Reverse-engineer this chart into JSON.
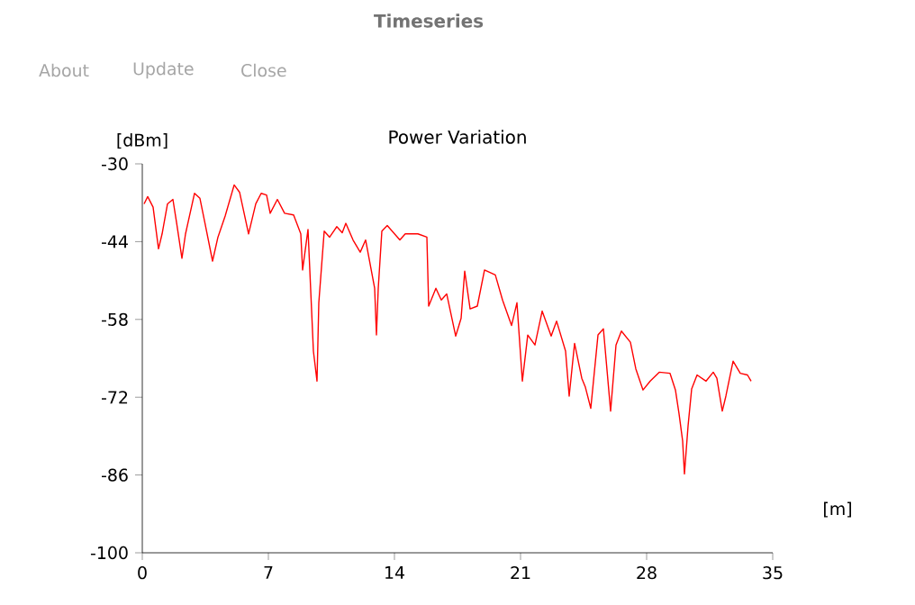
{
  "chart_data": {
    "type": "line",
    "title": "Power Variation",
    "xlabel": "[m]",
    "ylabel": "[dBm]",
    "annotations": [
      "Timeseries",
      "About",
      "Update",
      "Close"
    ],
    "xlim": [
      0,
      35
    ],
    "ylim": [
      -100,
      -30
    ],
    "xticks": [
      0,
      7,
      14,
      21,
      28,
      35
    ],
    "yticks": [
      -100,
      -86,
      -72,
      -58,
      -44,
      -30
    ],
    "x": [
      0.1,
      0.3,
      0.6,
      0.9,
      1.1,
      1.4,
      1.7,
      1.9,
      2.2,
      2.4,
      2.9,
      3.2,
      3.5,
      3.9,
      4.2,
      4.6,
      5.1,
      5.4,
      5.9,
      6.3,
      6.6,
      6.9,
      7.1,
      7.5,
      7.9,
      8.4,
      8.8,
      8.9,
      9.2,
      9.5,
      9.7,
      9.8,
      10.1,
      10.4,
      10.8,
      11.1,
      11.3,
      11.7,
      12.1,
      12.4,
      12.9,
      13.0,
      13.1,
      13.3,
      13.6,
      14.3,
      14.6,
      15.3,
      15.8,
      15.9,
      16.3,
      16.6,
      16.9,
      17.4,
      17.7,
      17.9,
      18.2,
      18.6,
      19.0,
      19.6,
      20.0,
      20.5,
      20.8,
      21.1,
      21.4,
      21.8,
      22.2,
      22.7,
      23.0,
      23.5,
      23.7,
      24.0,
      24.4,
      24.6,
      24.9,
      25.3,
      25.6,
      26.0,
      26.3,
      26.6,
      27.1,
      27.4,
      27.8,
      28.2,
      28.7,
      29.3,
      29.6,
      29.8,
      30.0,
      30.1,
      30.3,
      30.5,
      30.8,
      31.3,
      31.7,
      31.9,
      32.2,
      32.4,
      32.8,
      33.2,
      33.6,
      33.8
    ],
    "series": [
      {
        "color": "#ff0000",
        "values": [
          -37.2,
          -35.9,
          -37.8,
          -45.3,
          -42.6,
          -37.2,
          -36.4,
          -40.5,
          -47.0,
          -42.6,
          -35.3,
          -36.2,
          -41.0,
          -47.5,
          -43.2,
          -39.4,
          -33.8,
          -35.1,
          -42.6,
          -37.2,
          -35.3,
          -35.6,
          -38.9,
          -36.4,
          -38.9,
          -39.2,
          -42.6,
          -49.1,
          -41.8,
          -63.7,
          -69.1,
          -55.0,
          -42.1,
          -43.2,
          -41.3,
          -42.4,
          -40.7,
          -43.7,
          -45.9,
          -43.7,
          -52.4,
          -60.8,
          -52.4,
          -42.1,
          -41.1,
          -43.7,
          -42.6,
          -42.6,
          -43.2,
          -55.6,
          -52.4,
          -54.5,
          -53.4,
          -61.0,
          -57.8,
          -49.3,
          -56.1,
          -55.6,
          -49.1,
          -50.0,
          -54.5,
          -59.1,
          -55.0,
          -69.1,
          -60.8,
          -62.6,
          -56.5,
          -61.0,
          -58.3,
          -63.7,
          -71.8,
          -62.3,
          -68.6,
          -70.2,
          -74.0,
          -60.8,
          -59.7,
          -74.5,
          -62.6,
          -60.1,
          -62.1,
          -66.9,
          -70.7,
          -69.1,
          -67.5,
          -67.7,
          -70.7,
          -75.0,
          -79.9,
          -85.8,
          -77.2,
          -70.5,
          -68.0,
          -69.1,
          -67.5,
          -68.6,
          -74.5,
          -71.8,
          -65.5,
          -67.7,
          -68.0,
          -69.1
        ]
      }
    ]
  }
}
